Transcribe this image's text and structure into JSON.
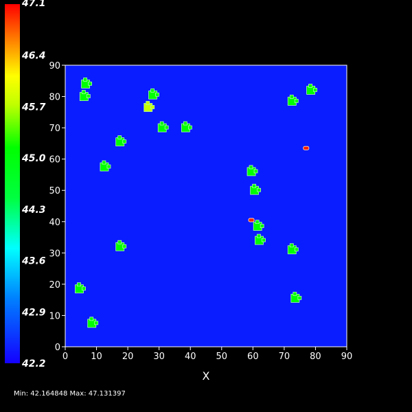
{
  "chart_data": {
    "type": "heatmap",
    "xlabel": "X",
    "ylabel": "",
    "xlim": [
      0,
      90
    ],
    "ylim": [
      0,
      90
    ],
    "x_ticks": [
      "0",
      "10",
      "20",
      "30",
      "40",
      "50",
      "60",
      "70",
      "80",
      "90"
    ],
    "y_ticks": [
      "0",
      "10",
      "20",
      "30",
      "40",
      "50",
      "60",
      "70",
      "80",
      "90"
    ],
    "background_value": 42.2,
    "colorbar": {
      "labels": [
        "47.1",
        "46.4",
        "45.7",
        "45.0",
        "44.3",
        "43.6",
        "42.9",
        "42.2"
      ],
      "min": 42.2,
      "max": 47.1,
      "colormap": "rainbow"
    },
    "min_max_text": "Min: 42.164848 Max: 47.131397",
    "blobs": [
      {
        "x": 6.5,
        "y": 84,
        "value": 45.0
      },
      {
        "x": 6,
        "y": 80,
        "value": 45.0
      },
      {
        "x": 28,
        "y": 80.5,
        "value": 45.0
      },
      {
        "x": 26.5,
        "y": 76.5,
        "value": 45.7
      },
      {
        "x": 31,
        "y": 70,
        "value": 45.0
      },
      {
        "x": 38.5,
        "y": 70,
        "value": 45.0
      },
      {
        "x": 17.5,
        "y": 65.5,
        "value": 45.0
      },
      {
        "x": 12.5,
        "y": 57.5,
        "value": 45.0
      },
      {
        "x": 72.5,
        "y": 78.5,
        "value": 45.0
      },
      {
        "x": 78.5,
        "y": 82,
        "value": 45.0
      },
      {
        "x": 77,
        "y": 63.5,
        "value": 47.1
      },
      {
        "x": 59.5,
        "y": 56,
        "value": 45.0
      },
      {
        "x": 60.5,
        "y": 50,
        "value": 45.0
      },
      {
        "x": 59.5,
        "y": 40.5,
        "value": 47.1
      },
      {
        "x": 61.5,
        "y": 38.5,
        "value": 45.0
      },
      {
        "x": 62,
        "y": 34,
        "value": 45.0
      },
      {
        "x": 17.5,
        "y": 32,
        "value": 45.0
      },
      {
        "x": 72.5,
        "y": 31,
        "value": 45.0
      },
      {
        "x": 4.5,
        "y": 18.5,
        "value": 45.0
      },
      {
        "x": 73.5,
        "y": 15.5,
        "value": 45.0
      },
      {
        "x": 8.5,
        "y": 7.5,
        "value": 45.0
      }
    ]
  }
}
